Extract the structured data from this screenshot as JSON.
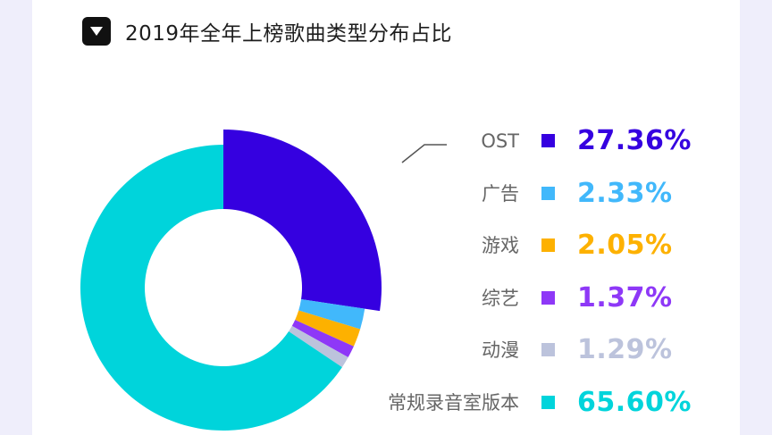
{
  "header": {
    "title": "2019年全年上榜歌曲类型分布占比",
    "toggle_icon": "triangle-down-icon"
  },
  "chart_data": {
    "type": "pie",
    "donut": true,
    "title": "2019年全年上榜歌曲类型分布占比",
    "legend_position": "right",
    "series": [
      {
        "name": "OST",
        "value": 27.36,
        "label": "27.36%",
        "color": "#3500e0"
      },
      {
        "name": "广告",
        "value": 2.33,
        "label": "2.33%",
        "color": "#41b8fb"
      },
      {
        "name": "游戏",
        "value": 2.05,
        "label": "2.05%",
        "color": "#fdb100"
      },
      {
        "name": "综艺",
        "value": 1.37,
        "label": "1.37%",
        "color": "#8e38f7"
      },
      {
        "name": "动漫",
        "value": 1.29,
        "label": "1.29%",
        "color": "#bcc3dc"
      },
      {
        "name": "常规录音室版本",
        "value": 65.6,
        "label": "65.60%",
        "color": "#00d4db"
      }
    ]
  }
}
